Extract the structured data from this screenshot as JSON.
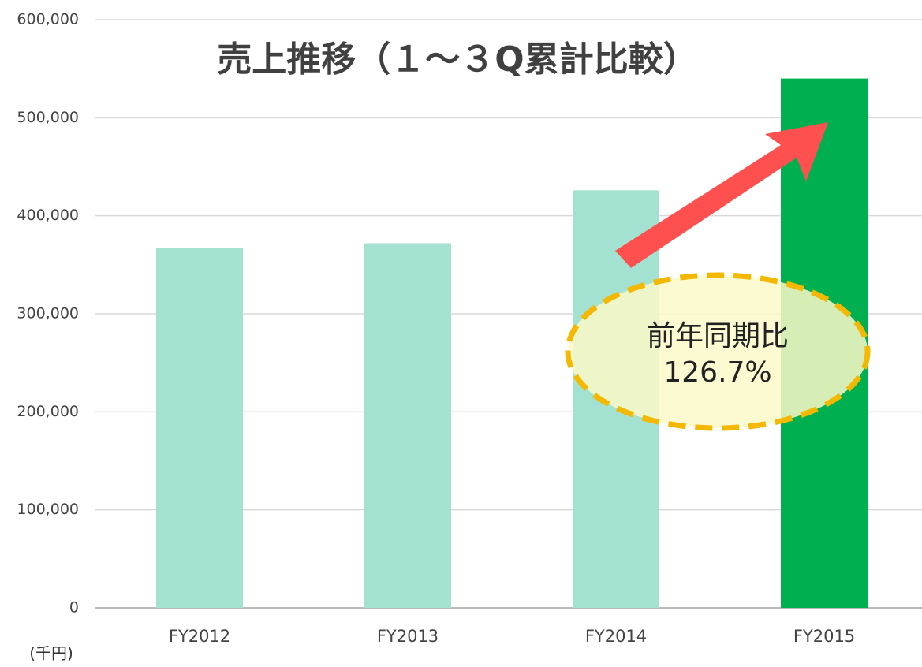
{
  "chart_data": {
    "type": "bar",
    "title": "売上推移（１～３Q累計比較）",
    "unit_label": "(千円)",
    "annotation": {
      "line1": "前年同期比",
      "line2": "126.7%"
    },
    "categories": [
      "FY2012",
      "FY2013",
      "FY2014",
      "FY2015"
    ],
    "values": [
      367000,
      372000,
      426000,
      540000
    ],
    "colors": [
      "#a3e2d0",
      "#a3e2d0",
      "#a3e2d0",
      "#00b050"
    ],
    "ylim": [
      0,
      600000
    ],
    "yticks": [
      0,
      {
        "value": 100000,
        "label": "100,000"
      },
      {
        "value": 200000,
        "label": "200,000"
      },
      {
        "value": 300000,
        "label": "300,000"
      },
      {
        "value": 400000,
        "label": "400,000"
      },
      {
        "value": 500000,
        "label": "500,000"
      },
      {
        "value": 600000,
        "label": "600,000"
      }
    ],
    "grid": true
  }
}
